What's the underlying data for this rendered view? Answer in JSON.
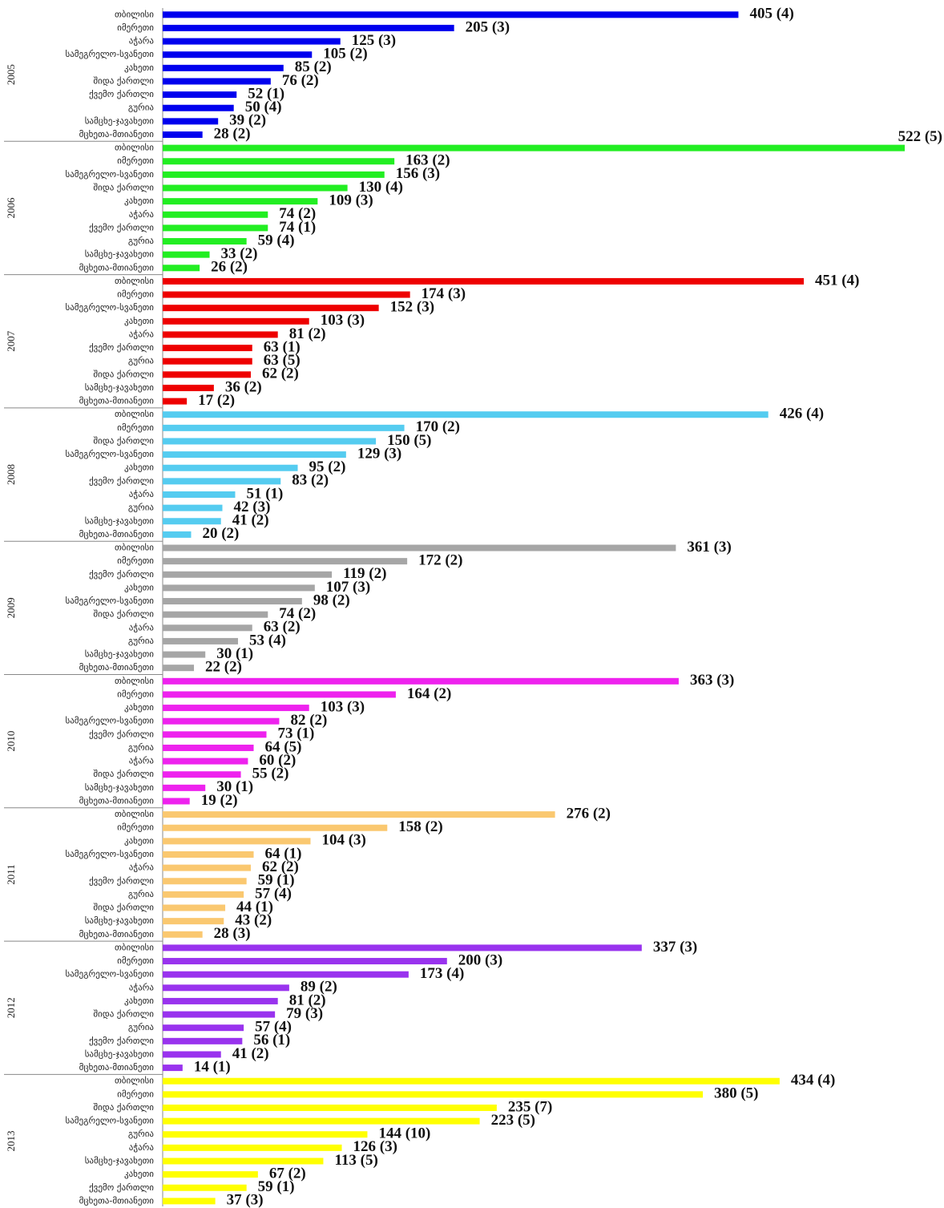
{
  "chart_data": {
    "type": "bar",
    "orientation": "horizontal",
    "groups": [
      {
        "name": "2005",
        "color": "#0000ee",
        "categories": [
          "თბილისი",
          "იმერეთი",
          "აჭარა",
          "სამეგრელო-სვანეთი",
          "კახეთი",
          "შიდა ქართლი",
          "ქვემო ქართლი",
          "გურია",
          "სამცხე-ჯავახეთი",
          "მცხეთა-მთიანეთი"
        ],
        "values": [
          405,
          205,
          125,
          105,
          85,
          76,
          52,
          50,
          39,
          28
        ],
        "value_labels": [
          "405 (4)",
          "205 (3)",
          "125 (3)",
          "105 (2)",
          "85 (2)",
          "76 (2)",
          "52 (1)",
          "50 (4)",
          "39 (2)",
          "28 (2)"
        ]
      },
      {
        "name": "2006",
        "color": "#22ee22",
        "categories": [
          "თბილისი",
          "იმერეთი",
          "სამეგრელო-სვანეთი",
          "შიდა ქართლი",
          "კახეთი",
          "აჭარა",
          "ქვემო ქართლი",
          "გურია",
          "სამცხე-ჯავახეთი",
          "მცხეთა-მთიანეთი"
        ],
        "values": [
          522,
          163,
          156,
          130,
          109,
          74,
          74,
          59,
          33,
          26
        ],
        "value_labels": [
          "522 (5)",
          "163 (2)",
          "156 (3)",
          "130 (4)",
          "109 (3)",
          "74 (2)",
          "74 (1)",
          "59 (4)",
          "33 (2)",
          "26 (2)"
        ]
      },
      {
        "name": "2007",
        "color": "#ee0000",
        "categories": [
          "თბილისი",
          "იმერეთი",
          "სამეგრელო-სვანეთი",
          "კახეთი",
          "აჭარა",
          "ქვემო ქართლი",
          "გურია",
          "შიდა ქართლი",
          "სამცხე-ჯავახეთი",
          "მცხეთა-მთიანეთი"
        ],
        "values": [
          451,
          174,
          152,
          103,
          81,
          63,
          63,
          62,
          36,
          17
        ],
        "value_labels": [
          "451 (4)",
          "174 (3)",
          "152 (3)",
          "103 (3)",
          "81 (2)",
          "63 (1)",
          "63 (5)",
          "62 (2)",
          "36 (2)",
          "17 (2)"
        ]
      },
      {
        "name": "2008",
        "color": "#55ccf0",
        "categories": [
          "თბილისი",
          "იმერეთი",
          "შიდა ქართლი",
          "სამეგრელო-სვანეთი",
          "კახეთი",
          "ქვემო ქართლი",
          "აჭარა",
          "გურია",
          "სამცხე-ჯავახეთი",
          "მცხეთა-მთიანეთი"
        ],
        "values": [
          426,
          170,
          150,
          129,
          95,
          83,
          51,
          42,
          41,
          20
        ],
        "value_labels": [
          "426 (4)",
          "170 (2)",
          "150 (5)",
          "129 (3)",
          "95 (2)",
          "83 (2)",
          "51 (1)",
          "42 (3)",
          "41 (2)",
          "20 (2)"
        ]
      },
      {
        "name": "2009",
        "color": "#a6a6a6",
        "categories": [
          "თბილისი",
          "იმერეთი",
          "ქვემო ქართლი",
          "კახეთი",
          "სამეგრელო-სვანეთი",
          "შიდა ქართლი",
          "აჭარა",
          "გურია",
          "სამცხე-ჯავახეთი",
          "მცხეთა-მთიანეთი"
        ],
        "values": [
          361,
          172,
          119,
          107,
          98,
          74,
          63,
          53,
          30,
          22
        ],
        "value_labels": [
          "361 (3)",
          "172 (2)",
          "119 (2)",
          "107 (3)",
          "98 (2)",
          "74 (2)",
          "63 (2)",
          "53 (4)",
          "30 (1)",
          "22 (2)"
        ]
      },
      {
        "name": "2010",
        "color": "#ee22ee",
        "categories": [
          "თბილისი",
          "იმერეთი",
          "კახეთი",
          "სამეგრელო-სვანეთი",
          "ქვემო ქართლი",
          "გურია",
          "აჭარა",
          "შიდა ქართლი",
          "სამცხე-ჯავახეთი",
          "მცხეთა-მთიანეთი"
        ],
        "values": [
          363,
          164,
          103,
          82,
          73,
          64,
          60,
          55,
          30,
          19
        ],
        "value_labels": [
          "363 (3)",
          "164 (2)",
          "103 (3)",
          "82 (2)",
          "73 (1)",
          "64 (5)",
          "60 (2)",
          "55 (2)",
          "30 (1)",
          "19 (2)"
        ]
      },
      {
        "name": "2011",
        "color": "#fac870",
        "categories": [
          "თბილისი",
          "იმერეთი",
          "კახეთი",
          "სამეგრელო-სვანეთი",
          "აჭარა",
          "ქვემო ქართლი",
          "გურია",
          "შიდა ქართლი",
          "სამცხე-ჯავახეთი",
          "მცხეთა-მთიანეთი"
        ],
        "values": [
          276,
          158,
          104,
          64,
          62,
          59,
          57,
          44,
          43,
          28
        ],
        "value_labels": [
          "276 (2)",
          "158 (2)",
          "104 (3)",
          "64 (1)",
          "62 (2)",
          "59 (1)",
          "57 (4)",
          "44 (1)",
          "43 (2)",
          "28 (3)"
        ]
      },
      {
        "name": "2012",
        "color": "#9933ee",
        "categories": [
          "თბილისი",
          "იმერეთი",
          "სამეგრელო-სვანეთი",
          "აჭარა",
          "კახეთი",
          "შიდა ქართლი",
          "გურია",
          "ქვემო ქართლი",
          "სამცხე-ჯავახეთი",
          "მცხეთა-მთიანეთი"
        ],
        "values": [
          337,
          200,
          173,
          89,
          81,
          79,
          57,
          56,
          41,
          14
        ],
        "value_labels": [
          "337 (3)",
          "200 (3)",
          "173 (4)",
          "89 (2)",
          "81 (2)",
          "79 (3)",
          "57 (4)",
          "56 (1)",
          "41 (2)",
          "14 (1)"
        ]
      },
      {
        "name": "2013",
        "color": "#ffff00",
        "categories": [
          "თბილისი",
          "იმერეთი",
          "შიდა ქართლი",
          "სამეგრელო-სვანეთი",
          "გურია",
          "აჭარა",
          "სამცხე-ჯავახეთი",
          "კახეთი",
          "ქვემო ქართლი",
          "მცხეთა-მთიანეთი"
        ],
        "values": [
          434,
          380,
          235,
          223,
          144,
          126,
          113,
          67,
          59,
          37
        ],
        "value_labels": [
          "434 (4)",
          "380 (5)",
          "235 (7)",
          "223 (5)",
          "144 (10)",
          "126 (3)",
          "113 (5)",
          "67 (2)",
          "59 (1)",
          "37 (3)"
        ]
      }
    ]
  }
}
